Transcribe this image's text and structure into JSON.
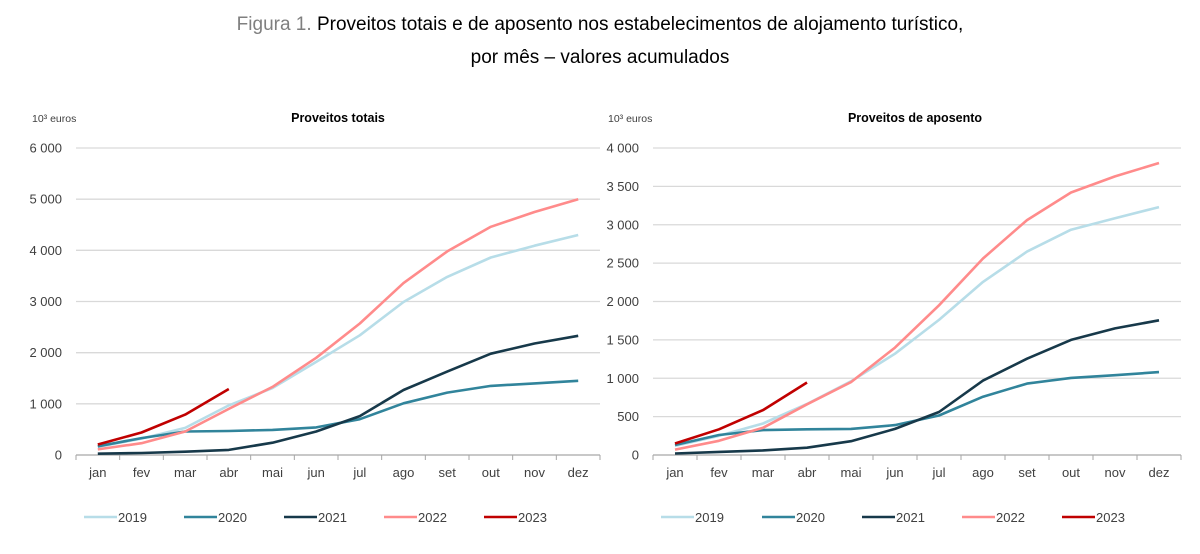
{
  "figure": {
    "number_label": "Figura 1.",
    "title_line1": "Proveitos totais e de aposento nos estabelecimentos de alojamento turístico,",
    "title_line2": "por mês – valores acumulados"
  },
  "colors": {
    "2019": "#b7dde8",
    "2020": "#31849b",
    "2021": "#17394a",
    "2022": "#ff8b8b",
    "2023": "#c00000"
  },
  "chart_data": [
    {
      "type": "line",
      "title": "Proveitos totais",
      "ylabel": "10³ euros",
      "xlabel": "",
      "categories": [
        "jan",
        "fev",
        "mar",
        "abr",
        "mai",
        "jun",
        "jul",
        "ago",
        "set",
        "out",
        "nov",
        "dez"
      ],
      "ylim": [
        0,
        6000
      ],
      "yticks": [
        0,
        1000,
        2000,
        3000,
        4000,
        5000,
        6000
      ],
      "ytick_labels": [
        "0",
        "1 000",
        "2 000",
        "3 000",
        "4 000",
        "5 000",
        "6 000"
      ],
      "grid": true,
      "legend_position": "bottom",
      "series": [
        {
          "name": "2019",
          "values": [
            160,
            320,
            530,
            970,
            1310,
            1820,
            2340,
            2990,
            3480,
            3860,
            4090,
            4300
          ]
        },
        {
          "name": "2020",
          "values": [
            170,
            330,
            460,
            470,
            490,
            540,
            700,
            1010,
            1220,
            1350,
            1400,
            1450
          ]
        },
        {
          "name": "2021",
          "values": [
            25,
            40,
            65,
            100,
            240,
            460,
            760,
            1270,
            1630,
            1980,
            2180,
            2330
          ]
        },
        {
          "name": "2022",
          "values": [
            110,
            230,
            460,
            900,
            1330,
            1900,
            2570,
            3360,
            3980,
            4460,
            4750,
            5000
          ]
        },
        {
          "name": "2023",
          "values": [
            205,
            440,
            790,
            1290,
            null,
            null,
            null,
            null,
            null,
            null,
            null,
            null
          ]
        }
      ]
    },
    {
      "type": "line",
      "title": "Proveitos de aposento",
      "ylabel": "10³ euros",
      "xlabel": "",
      "categories": [
        "jan",
        "fev",
        "mar",
        "abr",
        "mai",
        "jun",
        "jul",
        "ago",
        "set",
        "out",
        "nov",
        "dez"
      ],
      "ylim": [
        0,
        4000
      ],
      "yticks": [
        0,
        500,
        1000,
        1500,
        2000,
        2500,
        3000,
        3500,
        4000
      ],
      "ytick_labels": [
        "0",
        "500",
        "1 000",
        "1 500",
        "2 000",
        "2 500",
        "3 000",
        "3 500",
        "4 000"
      ],
      "grid": true,
      "legend_position": "bottom",
      "series": [
        {
          "name": "2019",
          "values": [
            120,
            250,
            410,
            665,
            960,
            1320,
            1760,
            2255,
            2650,
            2935,
            3085,
            3230
          ]
        },
        {
          "name": "2020",
          "values": [
            130,
            260,
            325,
            335,
            340,
            390,
            515,
            760,
            930,
            1005,
            1040,
            1080
          ]
        },
        {
          "name": "2021",
          "values": [
            20,
            40,
            60,
            95,
            180,
            340,
            560,
            970,
            1255,
            1500,
            1650,
            1755
          ]
        },
        {
          "name": "2022",
          "values": [
            70,
            185,
            355,
            660,
            950,
            1400,
            1950,
            2560,
            3060,
            3420,
            3630,
            3805
          ]
        },
        {
          "name": "2023",
          "values": [
            150,
            335,
            585,
            945,
            null,
            null,
            null,
            null,
            null,
            null,
            null,
            null
          ]
        }
      ]
    }
  ]
}
